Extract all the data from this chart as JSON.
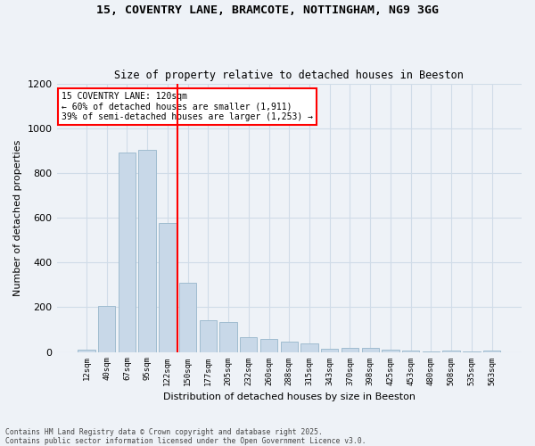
{
  "title1": "15, COVENTRY LANE, BRAMCOTE, NOTTINGHAM, NG9 3GG",
  "title2": "Size of property relative to detached houses in Beeston",
  "xlabel": "Distribution of detached houses by size in Beeston",
  "ylabel": "Number of detached properties",
  "bar_color": "#c8d8e8",
  "bar_edge_color": "#a0bcd0",
  "vline_color": "red",
  "annotation_text": "15 COVENTRY LANE: 120sqm\n← 60% of detached houses are smaller (1,911)\n39% of semi-detached houses are larger (1,253) →",
  "annotation_box_color": "white",
  "annotation_box_edge_color": "red",
  "categories": [
    "12sqm",
    "40sqm",
    "67sqm",
    "95sqm",
    "122sqm",
    "150sqm",
    "177sqm",
    "205sqm",
    "232sqm",
    "260sqm",
    "288sqm",
    "315sqm",
    "343sqm",
    "370sqm",
    "398sqm",
    "425sqm",
    "453sqm",
    "480sqm",
    "508sqm",
    "535sqm",
    "563sqm"
  ],
  "values": [
    10,
    205,
    890,
    905,
    575,
    310,
    140,
    135,
    65,
    60,
    45,
    40,
    15,
    18,
    17,
    10,
    5,
    3,
    7,
    1,
    8
  ],
  "ylim": [
    0,
    1200
  ],
  "yticks": [
    0,
    200,
    400,
    600,
    800,
    1000,
    1200
  ],
  "grid_color": "#d0dce8",
  "bg_color": "#eef2f7",
  "footnote": "Contains HM Land Registry data © Crown copyright and database right 2025.\nContains public sector information licensed under the Open Government Licence v3.0.",
  "fig_width": 6.0,
  "fig_height": 5.0
}
